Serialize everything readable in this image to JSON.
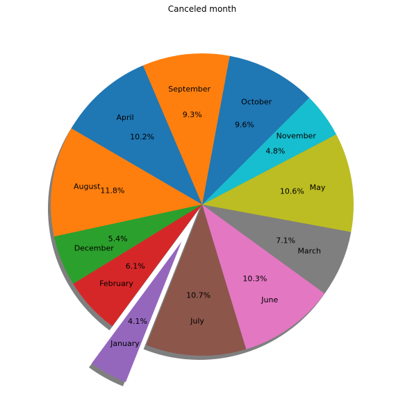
{
  "chart_data": {
    "type": "pie",
    "title": "Canceled month",
    "slices": [
      {
        "label": "April",
        "value": 10.2,
        "pct": "10.2%",
        "color": "#1f77b4",
        "exploded": false
      },
      {
        "label": "August",
        "value": 11.8,
        "pct": "11.8%",
        "color": "#ff7f0e",
        "exploded": false
      },
      {
        "label": "December",
        "value": 5.4,
        "pct": "5.4%",
        "color": "#2ca02c",
        "exploded": false
      },
      {
        "label": "February",
        "value": 6.1,
        "pct": "6.1%",
        "color": "#d62728",
        "exploded": false
      },
      {
        "label": "January",
        "value": 4.1,
        "pct": "4.1%",
        "color": "#9467bd",
        "exploded": true
      },
      {
        "label": "July",
        "value": 10.7,
        "pct": "10.7%",
        "color": "#8c564b",
        "exploded": false
      },
      {
        "label": "June",
        "value": 10.3,
        "pct": "10.3%",
        "color": "#e377c2",
        "exploded": false
      },
      {
        "label": "March",
        "value": 7.1,
        "pct": "7.1%",
        "color": "#7f7f7f",
        "exploded": false
      },
      {
        "label": "May",
        "value": 10.6,
        "pct": "10.6%",
        "color": "#bcbd22",
        "exploded": false
      },
      {
        "label": "November",
        "value": 4.8,
        "pct": "4.8%",
        "color": "#17becf",
        "exploded": false
      },
      {
        "label": "October",
        "value": 9.6,
        "pct": "9.6%",
        "color": "#1f77b4",
        "exploded": false
      },
      {
        "label": "September",
        "value": 9.3,
        "pct": "9.3%",
        "color": "#ff7f0e",
        "exploded": false
      }
    ],
    "start_angle_deg": 113,
    "direction": "counterclockwise",
    "shadow": true,
    "legend": "none"
  }
}
